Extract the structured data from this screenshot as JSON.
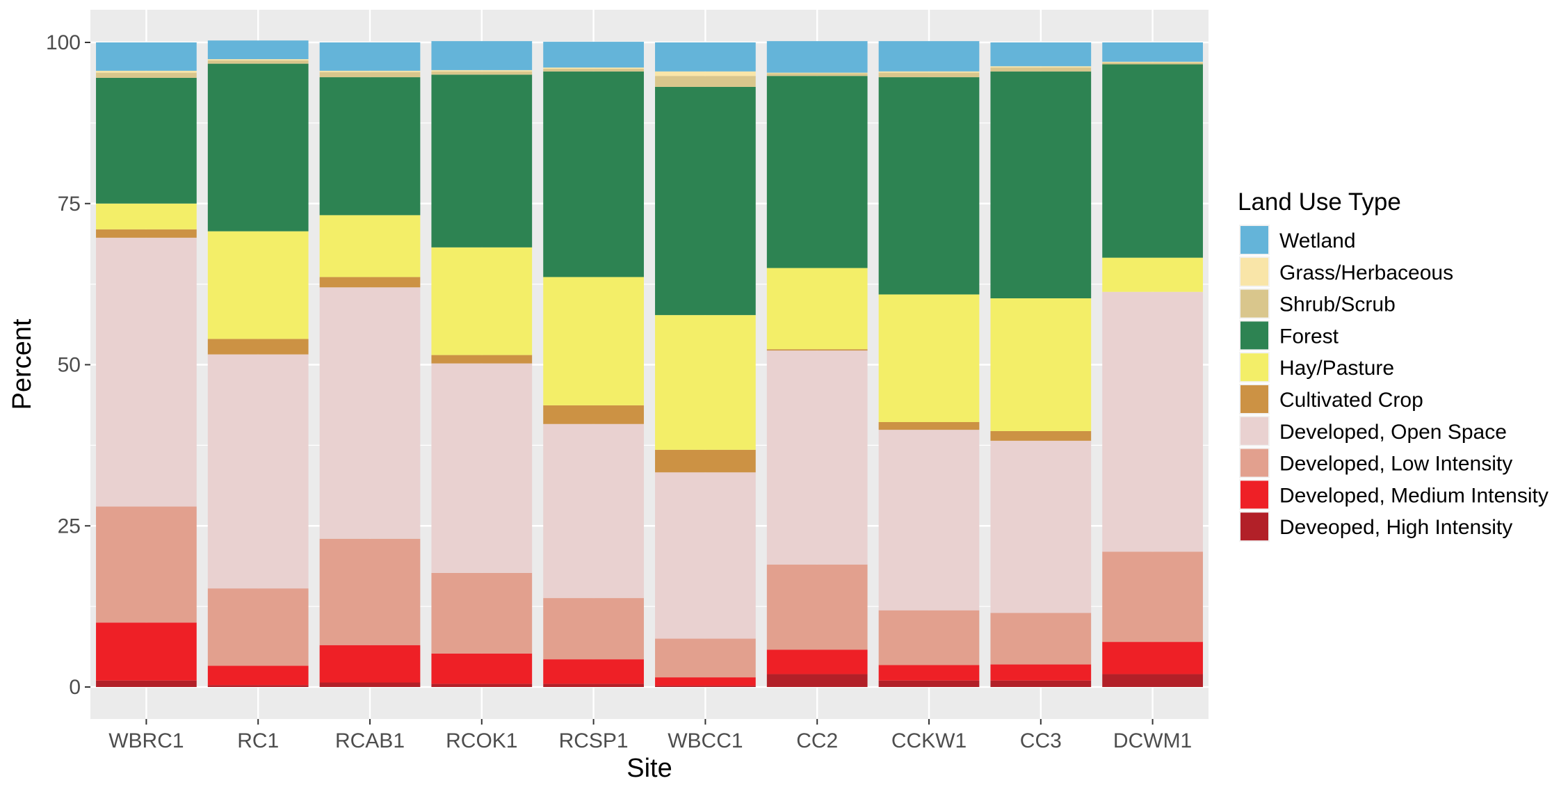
{
  "chart_data": {
    "type": "bar",
    "stacked": true,
    "title": "",
    "xlabel": "Site",
    "ylabel": "Percent",
    "ylim": [
      0,
      100
    ],
    "yticks": [
      0,
      25,
      50,
      75,
      100
    ],
    "grid": true,
    "legend_title": "Land Use Type",
    "legend_position": "right",
    "categories": [
      "WBRC1",
      "RC1",
      "RCAB1",
      "RCOK1",
      "RCSP1",
      "WBCC1",
      "CC2",
      "CCKW1",
      "CC3",
      "DCWM1"
    ],
    "series": [
      {
        "name": "Deveoped, High Intensity",
        "color": "#b22028",
        "values": [
          1.0,
          0.3,
          0.7,
          0.5,
          0.5,
          0.2,
          2.0,
          1.0,
          1.0,
          2.0
        ]
      },
      {
        "name": "Developed, Medium Intensity",
        "color": "#ee2026",
        "values": [
          9.0,
          3.0,
          5.8,
          4.7,
          3.8,
          1.3,
          3.8,
          2.4,
          2.5,
          5.0
        ]
      },
      {
        "name": "Developed, Low Intensity",
        "color": "#e2a08e",
        "values": [
          18.0,
          12.0,
          16.5,
          12.5,
          9.5,
          6.0,
          13.2,
          8.5,
          8.0,
          14.0
        ]
      },
      {
        "name": "Developed, Open Space",
        "color": "#e9d1d0",
        "values": [
          41.7,
          36.3,
          39.0,
          32.5,
          27.0,
          25.8,
          33.2,
          28.0,
          26.7,
          40.3
        ]
      },
      {
        "name": "Cultivated Crop",
        "color": "#cc9244",
        "values": [
          1.3,
          2.4,
          1.6,
          1.3,
          2.9,
          3.5,
          0.2,
          1.2,
          1.5,
          0.0
        ]
      },
      {
        "name": "Hay/Pasture",
        "color": "#f3ee68",
        "values": [
          4.0,
          16.7,
          9.6,
          16.7,
          19.9,
          20.9,
          12.6,
          19.8,
          20.6,
          5.3
        ]
      },
      {
        "name": "Forest",
        "color": "#2d8352",
        "values": [
          19.5,
          26.0,
          21.4,
          26.8,
          31.9,
          35.4,
          29.8,
          33.7,
          35.2,
          30.0
        ]
      },
      {
        "name": "Shrub/Scrub",
        "color": "#d9c68c",
        "values": [
          0.8,
          0.5,
          0.8,
          0.5,
          0.4,
          1.7,
          0.4,
          0.7,
          0.6,
          0.3
        ]
      },
      {
        "name": "Grass/Herbaceous",
        "color": "#f9e5a8",
        "values": [
          0.3,
          0.2,
          0.2,
          0.2,
          0.2,
          0.7,
          0.1,
          0.2,
          0.2,
          0.1
        ]
      },
      {
        "name": "Wetland",
        "color": "#64b4d9",
        "values": [
          4.4,
          2.9,
          4.4,
          4.5,
          4.0,
          4.5,
          4.9,
          4.7,
          3.7,
          3.0
        ]
      }
    ],
    "legend_order": [
      "Wetland",
      "Grass/Herbaceous",
      "Shrub/Scrub",
      "Forest",
      "Hay/Pasture",
      "Cultivated Crop",
      "Developed, Open Space",
      "Developed, Low Intensity",
      "Developed, Medium Intensity",
      "Deveoped, High Intensity"
    ]
  }
}
